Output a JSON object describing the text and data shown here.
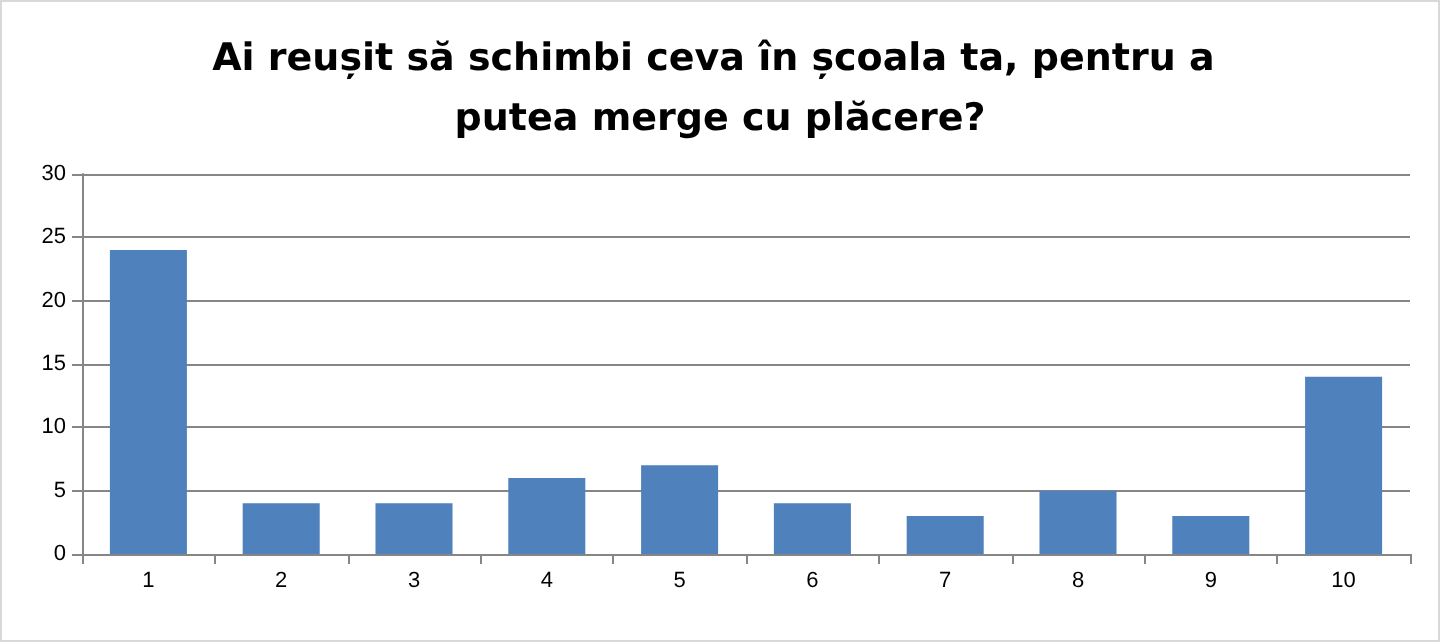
{
  "chart_data": {
    "type": "bar",
    "title": "Ai reușit să schimbi ceva în școala ta, pentru a putea merge cu plăcere?",
    "categories": [
      "1",
      "2",
      "3",
      "4",
      "5",
      "6",
      "7",
      "8",
      "9",
      "10"
    ],
    "values": [
      24,
      4,
      4,
      6,
      7,
      4,
      3,
      5,
      3,
      14
    ],
    "color": "#4f81bd",
    "ylim": [
      0,
      30
    ],
    "yticks": [
      0,
      5,
      10,
      15,
      20,
      25,
      30
    ],
    "grid": "y"
  }
}
